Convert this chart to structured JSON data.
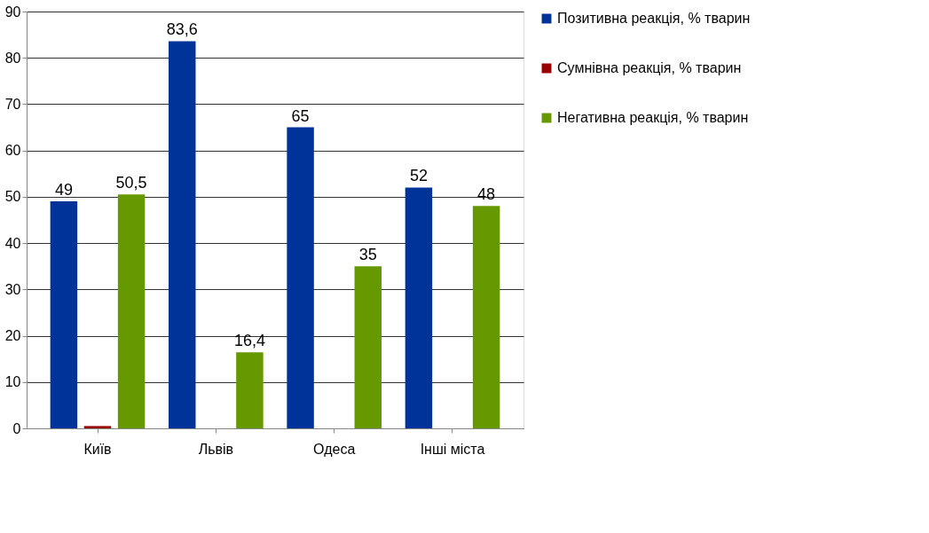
{
  "chart_data": {
    "type": "bar",
    "categories": [
      "Київ",
      "Львів",
      "Одеса",
      "Інші міста"
    ],
    "series": [
      {
        "name": "Позитивна реакція, % тварин",
        "color": "#003399",
        "values": [
          49,
          83.6,
          65,
          52
        ],
        "value_labels": [
          "49",
          "83,6",
          "65",
          "52"
        ]
      },
      {
        "name": "Сумнівна реакція, % тварин",
        "color": "#990000",
        "values": [
          0.5,
          0,
          0,
          0
        ]
      },
      {
        "name": "Негативна реакція, % тварин",
        "color": "#669900",
        "values": [
          50.5,
          16.4,
          35,
          48
        ],
        "value_labels": [
          "50,5",
          "16,4",
          "35",
          "48"
        ]
      }
    ],
    "ylim": [
      0,
      90
    ],
    "yticks": [
      0,
      10,
      20,
      30,
      40,
      50,
      60,
      70,
      80,
      90
    ],
    "grid": "y",
    "legend": "right"
  }
}
